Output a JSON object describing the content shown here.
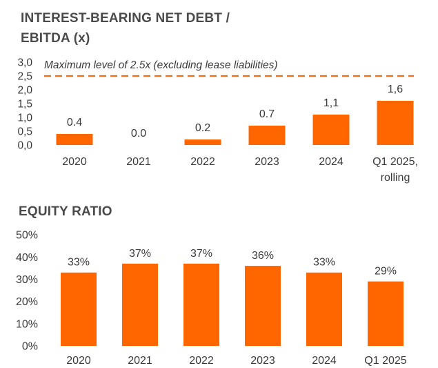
{
  "charts": {
    "net_debt": {
      "title_line1": "INTEREST-BEARING NET DEBT /",
      "title_line2": "EBITDA (x)",
      "threshold_label": "Maximum level of 2.5x (excluding lease liabilities)"
    },
    "equity": {
      "title": "EQUITY RATIO"
    }
  },
  "colors": {
    "bar": "#FF6600",
    "threshold_line": "#F26B21",
    "axis_text": "#3a3a3a",
    "title_text": "#4a4a4a"
  },
  "chart_data": [
    {
      "type": "bar",
      "title": "INTEREST-BEARING NET DEBT / EBITDA (x)",
      "categories": [
        "2020",
        "2021",
        "2022",
        "2023",
        "2024",
        "Q1 2025, rolling"
      ],
      "values": [
        0.4,
        0.0,
        0.2,
        0.7,
        1.1,
        1.6
      ],
      "data_labels": [
        "0.4",
        "0.0",
        "0.2",
        "0.7",
        "1,1",
        "1,6"
      ],
      "ylim": [
        0,
        3.0
      ],
      "yticks": [
        "0,0",
        "0,5",
        "1,0",
        "1,5",
        "2,0",
        "2,5",
        "3,0"
      ],
      "reference_line": {
        "value": 2.5,
        "label": "Maximum level of 2.5x (excluding lease liabilities)",
        "style": "dashed"
      },
      "grid": false
    },
    {
      "type": "bar",
      "title": "EQUITY RATIO",
      "categories": [
        "2020",
        "2021",
        "2022",
        "2023",
        "2024",
        "Q1 2025"
      ],
      "values": [
        33,
        37,
        37,
        36,
        33,
        29
      ],
      "data_labels": [
        "33%",
        "37%",
        "37%",
        "36%",
        "33%",
        "29%"
      ],
      "ylim": [
        0,
        50
      ],
      "yticks": [
        "0%",
        "10%",
        "20%",
        "30%",
        "40%",
        "50%"
      ],
      "grid": false
    }
  ]
}
